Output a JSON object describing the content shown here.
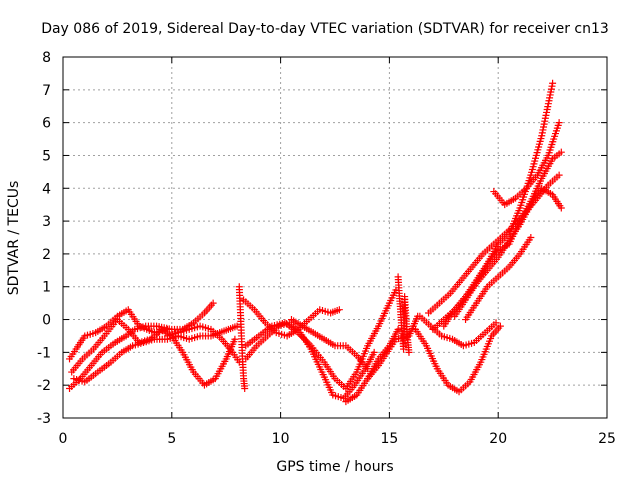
{
  "chart_data": {
    "type": "scatter",
    "title": "Day 086 of 2019, Sidereal Day-to-day VTEC variation (SDTVAR) for receiver cn13",
    "xlabel": "GPS time / hours",
    "ylabel": "SDTVAR / TECUs",
    "xlim": [
      0,
      25
    ],
    "ylim": [
      -3,
      8
    ],
    "xticks": [
      "0",
      "5",
      "10",
      "15",
      "20",
      "25"
    ],
    "yticks": [
      "-3",
      "-2",
      "-1",
      "0",
      "1",
      "2",
      "3",
      "4",
      "5",
      "6",
      "7",
      "8"
    ],
    "grid": true,
    "marker": "+",
    "point_color": "#ff0000",
    "series": [
      {
        "x": [
          0.3,
          0.6,
          1.0,
          1.5,
          2.0,
          2.5,
          3.0,
          3.5,
          4.2,
          4.8
        ],
        "y": [
          -1.2,
          -0.9,
          -0.5,
          -0.4,
          -0.2,
          0.1,
          0.3,
          -0.2,
          -0.4,
          -0.3
        ]
      },
      {
        "x": [
          0.3,
          0.8,
          1.3,
          1.8,
          2.4,
          2.9,
          3.3,
          3.8,
          4.3,
          5.0,
          5.5,
          6.0,
          6.5,
          6.9
        ],
        "y": [
          -2.1,
          -1.8,
          -1.4,
          -1.0,
          -0.7,
          -0.5,
          -0.3,
          -0.2,
          -0.2,
          -0.3,
          -0.3,
          -0.1,
          0.2,
          0.5
        ]
      },
      {
        "x": [
          0.5,
          1.0,
          1.6,
          2.2,
          2.7,
          3.2,
          3.7,
          4.2,
          4.8,
          5.3,
          5.8,
          6.3,
          6.8,
          7.2,
          7.6,
          8.0
        ],
        "y": [
          -1.8,
          -1.9,
          -1.6,
          -1.3,
          -1.0,
          -0.8,
          -0.7,
          -0.6,
          -0.6,
          -0.5,
          -0.6,
          -0.5,
          -0.5,
          -0.4,
          -0.3,
          -0.2
        ]
      },
      {
        "x": [
          0.4,
          0.9,
          1.4,
          1.9,
          2.5,
          3.0,
          3.5,
          4.0,
          4.4
        ],
        "y": [
          -1.6,
          -1.2,
          -0.9,
          -0.5,
          0.0,
          -0.3,
          -0.7,
          -0.6,
          -0.4
        ]
      },
      {
        "x": [
          4.5,
          5.0,
          5.5,
          6.0,
          6.5,
          7.0,
          7.5,
          7.9
        ],
        "y": [
          -0.3,
          -0.5,
          -1.0,
          -1.6,
          -2.0,
          -1.8,
          -1.2,
          -0.6
        ]
      },
      {
        "x": [
          4.8,
          5.3,
          5.8,
          6.3,
          6.8,
          7.3,
          7.8,
          8.1
        ],
        "y": [
          -0.5,
          -0.4,
          -0.3,
          -0.2,
          -0.3,
          -0.6,
          -1.0,
          -1.3
        ]
      },
      {
        "x": [
          8.1,
          8.15,
          8.2,
          8.25,
          8.3,
          8.35
        ],
        "y": [
          1.0,
          0.3,
          -0.5,
          -1.2,
          -1.8,
          -2.1
        ]
      },
      {
        "x": [
          8.3,
          8.8,
          9.3,
          9.8,
          10.3,
          10.8,
          11.3,
          11.8,
          12.3,
          12.7
        ],
        "y": [
          0.6,
          0.3,
          -0.1,
          -0.4,
          -0.5,
          -0.3,
          0.0,
          0.3,
          0.2,
          0.3
        ]
      },
      {
        "x": [
          8.4,
          8.9,
          9.4,
          9.9,
          10.4,
          10.9,
          11.4,
          11.9,
          12.4,
          12.9,
          13.4,
          13.9,
          14.3
        ],
        "y": [
          -1.2,
          -0.8,
          -0.5,
          -0.2,
          -0.1,
          -0.4,
          -0.9,
          -1.6,
          -2.3,
          -2.4,
          -2.0,
          -1.5,
          -1.0
        ]
      },
      {
        "x": [
          8.4,
          9.0,
          9.6,
          10.2,
          10.8,
          11.4,
          12.0,
          12.5,
          13.0,
          13.5,
          14.0,
          14.5,
          15.0,
          15.3
        ],
        "y": [
          -0.8,
          -0.5,
          -0.2,
          -0.1,
          -0.4,
          -0.8,
          -1.3,
          -1.8,
          -2.1,
          -1.6,
          -0.8,
          -0.2,
          0.5,
          0.9
        ]
      },
      {
        "x": [
          10.5,
          11.0,
          11.5,
          12.0,
          12.5,
          13.0,
          13.5,
          14.0
        ],
        "y": [
          0.0,
          -0.2,
          -0.4,
          -0.6,
          -0.8,
          -0.8,
          -1.1,
          -1.5
        ]
      },
      {
        "x": [
          13.0,
          13.5,
          14.0,
          14.5,
          15.0,
          15.4
        ],
        "y": [
          -2.5,
          -2.3,
          -1.8,
          -1.2,
          -0.8,
          -0.3
        ]
      },
      {
        "x": [
          15.4,
          15.45,
          15.5,
          15.55,
          15.6,
          15.65,
          15.7,
          15.75,
          15.8,
          15.85,
          15.9
        ],
        "y": [
          1.3,
          0.8,
          0.4,
          -0.1,
          -0.5,
          -0.9,
          0.7,
          0.2,
          -0.3,
          -0.7,
          -1.0
        ]
      },
      {
        "x": [
          14.0,
          14.5,
          15.0,
          15.3,
          15.9,
          16.3
        ],
        "y": [
          -1.8,
          -1.4,
          -0.9,
          -0.6,
          -0.5,
          0.1
        ]
      },
      {
        "x": [
          16.2,
          16.7,
          17.2,
          17.7,
          18.2,
          18.7,
          19.2,
          19.7,
          20.1
        ],
        "y": [
          -0.3,
          -0.8,
          -1.5,
          -2.0,
          -2.2,
          -1.9,
          -1.3,
          -0.5,
          -0.2
        ]
      },
      {
        "x": [
          16.4,
          16.9,
          17.4,
          17.9,
          18.4,
          18.9,
          19.4,
          19.9
        ],
        "y": [
          0.1,
          -0.2,
          -0.5,
          -0.6,
          -0.8,
          -0.7,
          -0.4,
          -0.1
        ]
      },
      {
        "x": [
          16.8,
          17.3,
          17.8,
          18.3,
          18.8,
          19.3,
          19.8,
          20.3,
          20.8,
          21.3,
          21.8,
          22.3,
          22.8
        ],
        "y": [
          0.2,
          0.5,
          0.8,
          1.2,
          1.6,
          2.0,
          2.3,
          2.6,
          2.9,
          3.3,
          3.7,
          4.1,
          4.4
        ]
      },
      {
        "x": [
          17.0,
          17.5,
          18.0,
          18.5,
          19.0,
          19.5,
          20.0,
          20.5,
          21.0,
          21.5,
          22.0,
          22.5,
          22.9
        ],
        "y": [
          -0.3,
          0.0,
          0.3,
          0.7,
          1.1,
          1.5,
          1.9,
          2.4,
          2.9,
          3.5,
          4.0,
          3.8,
          3.4
        ]
      },
      {
        "x": [
          17.5,
          18.0,
          18.5,
          19.0,
          19.5,
          20.0,
          20.5,
          21.0,
          21.5,
          22.0,
          22.5,
          22.9
        ],
        "y": [
          -0.2,
          0.3,
          0.7,
          1.2,
          1.7,
          2.1,
          2.3,
          3.0,
          3.6,
          4.3,
          4.9,
          5.1
        ]
      },
      {
        "x": [
          18.0,
          18.5,
          19.0,
          19.5,
          20.0,
          20.5,
          21.0,
          21.5,
          22.0,
          22.5
        ],
        "y": [
          0.1,
          0.6,
          1.1,
          1.7,
          2.3,
          2.6,
          3.4,
          4.4,
          5.6,
          7.2
        ]
      },
      {
        "x": [
          19.8,
          20.3,
          20.8,
          21.3,
          21.8,
          22.3,
          22.8
        ],
        "y": [
          3.9,
          3.5,
          3.7,
          4.0,
          4.4,
          5.0,
          6.0
        ]
      },
      {
        "x": [
          18.5,
          19.0,
          19.5,
          20.0,
          20.5,
          21.0,
          21.5
        ],
        "y": [
          0.0,
          0.5,
          1.0,
          1.3,
          1.6,
          2.0,
          2.5
        ]
      }
    ]
  }
}
